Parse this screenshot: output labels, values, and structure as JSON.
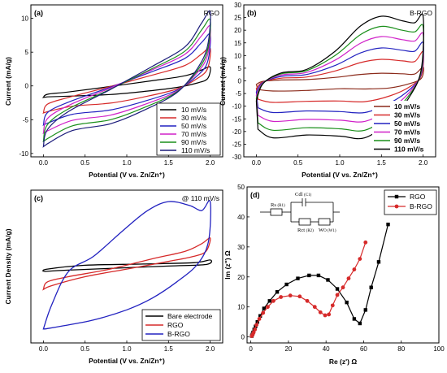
{
  "chart_data": [
    {
      "panel": "(a)",
      "type": "line",
      "title": "RGO",
      "xlabel": "Potential (V vs. Zn/Zn⁺)",
      "ylabel": "Current (mA/g)",
      "xlim": [
        -0.15,
        2.15
      ],
      "ylim": [
        -10.5,
        12
      ],
      "xticks": [
        0.0,
        0.5,
        1.0,
        1.5,
        2.0
      ],
      "yticks": [
        -10,
        -5,
        0,
        5,
        10
      ],
      "legend_position": "bottom-right",
      "curve_model": {
        "E": [
          0.0,
          0.05,
          0.3,
          0.6,
          1.0,
          1.4,
          1.65,
          1.85,
          1.96,
          2.0
        ],
        "shape": "quasi-rectangular"
      },
      "series": [
        {
          "name": "10 mV/s",
          "color": "#000000",
          "anodic_start": -1.5,
          "cathodic_start": -1.7,
          "anodic_end": 2.8,
          "cathodic_end": 1.1,
          "flat_anodic": -0.9,
          "flat_cathodic": -1.5
        },
        {
          "name": "30 mV/s",
          "color": "#d62a2a",
          "anodic_start": -3.5,
          "cathodic_start": -4.0,
          "anodic_end": 5.6,
          "cathodic_end": 2.6,
          "flat_anodic": -1.7,
          "flat_cathodic": -3.0
        },
        {
          "name": "50 mV/s",
          "color": "#2222c0",
          "anodic_start": -5.2,
          "cathodic_start": -5.8,
          "anodic_end": 7.6,
          "cathodic_end": 3.6,
          "flat_anodic": -2.4,
          "flat_cathodic": -4.2
        },
        {
          "name": "70 mV/s",
          "color": "#d020c8",
          "anodic_start": -6.4,
          "cathodic_start": -7.0,
          "anodic_end": 8.8,
          "cathodic_end": 4.6,
          "flat_anodic": -2.9,
          "flat_cathodic": -5.1
        },
        {
          "name": "90 mV/s",
          "color": "#1a8f1a",
          "anodic_start": -7.6,
          "cathodic_start": -8.2,
          "anodic_end": 9.8,
          "cathodic_end": 5.3,
          "flat_anodic": -3.4,
          "flat_cathodic": -5.9
        },
        {
          "name": "110 mV/s",
          "color": "#1a1a7a",
          "anodic_start": -8.6,
          "cathodic_start": -9.0,
          "anodic_end": 11.0,
          "cathodic_end": 6.0,
          "flat_anodic": -3.8,
          "flat_cathodic": -6.6
        }
      ]
    },
    {
      "panel": "(b)",
      "type": "line",
      "title": "B-RGO",
      "xlabel": "Potential (V vs. Zn/Zn⁺)",
      "ylabel": "Current (mA/g)",
      "xlim": [
        -0.15,
        2.15
      ],
      "ylim": [
        -30,
        30
      ],
      "xticks": [
        0.0,
        0.5,
        1.0,
        1.5,
        2.0
      ],
      "yticks": [
        -30,
        -25,
        -20,
        -15,
        -10,
        -5,
        0,
        5,
        10,
        15,
        20,
        25,
        30
      ],
      "legend_position": "bottom-right",
      "series": [
        {
          "name": "10 mV/s",
          "color": "#8b2a1a",
          "peak_anodic": 3.0,
          "peak_cathodic": -3.2,
          "flat_anodic": 0.5,
          "flat_cathodic": -4.0,
          "end": 5.5
        },
        {
          "name": "30 mV/s",
          "color": "#d62a2a",
          "peak_anodic": 8.5,
          "peak_cathodic": -8.2,
          "flat_anodic": 1.5,
          "flat_cathodic": -8.5,
          "end": 11.5
        },
        {
          "name": "50 mV/s",
          "color": "#2222c0",
          "peak_anodic": 13.0,
          "peak_cathodic": -12.5,
          "flat_anodic": 2.5,
          "flat_cathodic": -12.5,
          "end": 15.0
        },
        {
          "name": "70 mV/s",
          "color": "#d020c8",
          "peak_anodic": 17.5,
          "peak_cathodic": -16.0,
          "flat_anodic": 3.3,
          "flat_cathodic": -16.0,
          "end": 18.5
        },
        {
          "name": "90 mV/s",
          "color": "#1a8f1a",
          "peak_anodic": 21.5,
          "peak_cathodic": -19.5,
          "flat_anodic": 4.0,
          "flat_cathodic": -19.5,
          "end": 21.5
        },
        {
          "name": "110 mV/s",
          "color": "#000000",
          "peak_anodic": 25.5,
          "peak_cathodic": -22.5,
          "flat_anodic": 4.5,
          "flat_cathodic": -22.5,
          "end": 25.5
        }
      ]
    },
    {
      "panel": "(c)",
      "type": "line",
      "title": "@ 110 mV/s",
      "xlabel": "Potential (V vs. Zn/Zn⁺)",
      "ylabel": "Current Density (mA/g)",
      "xlim": [
        -0.15,
        2.15
      ],
      "ylim": [
        -30,
        30
      ],
      "xticks": [
        0.0,
        0.5,
        1.0,
        1.5,
        2.0
      ],
      "legend_position": "bottom-right",
      "series": [
        {
          "name": "Bare electrode",
          "color": "#000000"
        },
        {
          "name": "RGO",
          "color": "#d62a2a"
        },
        {
          "name": "B-RGO",
          "color": "#2222c0"
        }
      ]
    },
    {
      "panel": "(d)",
      "type": "scatter",
      "xlabel": "Re (z') Ω",
      "ylabel": "Im (z'') Ω",
      "xlim": [
        -2,
        100
      ],
      "ylim": [
        -2,
        50
      ],
      "xticks": [
        0,
        20,
        40,
        60,
        80,
        100
      ],
      "yticks": [
        0,
        10,
        20,
        30,
        40,
        50
      ],
      "legend_position": "top-right",
      "series": [
        {
          "name": "RGO",
          "color": "#000000",
          "marker": "square",
          "x": [
            0.5,
            0.8,
            1.2,
            1.8,
            2.5,
            3.5,
            5,
            7,
            10,
            14,
            19,
            25,
            31,
            36,
            41,
            46,
            51,
            55,
            58,
            61,
            64,
            68,
            73
          ],
          "y": [
            0.3,
            0.8,
            1.5,
            2.5,
            3.5,
            5,
            7,
            9.5,
            12,
            15,
            17.5,
            19.5,
            20.5,
            20.5,
            19,
            16,
            11.5,
            6,
            4.5,
            9,
            16.5,
            25,
            37.5
          ]
        },
        {
          "name": "B-RGO",
          "color": "#d62a2a",
          "marker": "circle",
          "x": [
            0.5,
            1,
            1.5,
            2.2,
            3,
            4.5,
            6.5,
            9,
            12,
            16,
            21,
            26,
            30,
            34,
            37,
            39.5,
            41.5,
            43.5,
            46,
            49,
            52,
            55,
            58,
            61
          ],
          "y": [
            0.3,
            0.8,
            1.5,
            2.5,
            4,
            6,
            8,
            10,
            12,
            13.3,
            13.8,
            13.5,
            12,
            10,
            8.2,
            7.2,
            7.5,
            10.5,
            14,
            16.5,
            19.5,
            22.5,
            26,
            31.5
          ]
        }
      ]
    }
  ],
  "circuit": {
    "rs": "Rs",
    "rs_sub": "(R1)",
    "cdl": "Cdl",
    "cdl_sub": "(C1)",
    "rct": "Rct",
    "rct_sub": "(R2)",
    "w": "W",
    "w_sub": "O (W1)"
  }
}
